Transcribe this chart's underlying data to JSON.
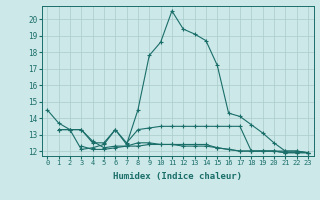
{
  "xlabel": "Humidex (Indice chaleur)",
  "bg_color": "#cce8e8",
  "grid_color": "#aacccc",
  "line_color": "#1a6e6a",
  "xlim": [
    -0.5,
    23.5
  ],
  "ylim": [
    11.7,
    20.8
  ],
  "xticks": [
    0,
    1,
    2,
    3,
    4,
    5,
    6,
    7,
    8,
    9,
    10,
    11,
    12,
    13,
    14,
    15,
    16,
    17,
    18,
    19,
    20,
    21,
    22,
    23
  ],
  "yticks": [
    12,
    13,
    14,
    15,
    16,
    17,
    18,
    19,
    20
  ],
  "curve1_x": [
    0,
    1,
    2,
    3,
    4,
    5,
    6,
    7,
    8,
    9,
    10,
    11,
    12,
    13,
    14,
    15,
    16,
    17,
    18,
    19,
    20,
    21,
    22,
    23
  ],
  "curve1_y": [
    14.5,
    13.7,
    13.3,
    12.1,
    12.2,
    12.4,
    13.3,
    12.4,
    14.5,
    17.8,
    18.6,
    20.5,
    19.4,
    19.1,
    18.7,
    17.2,
    14.3,
    14.1,
    13.6,
    13.1,
    12.5,
    12.0,
    12.0,
    11.9
  ],
  "curve2_x": [
    1,
    2,
    3,
    4,
    5,
    6,
    7,
    8,
    9,
    10,
    11,
    12,
    13,
    14,
    15,
    16,
    17,
    18,
    19,
    20,
    21,
    22,
    23
  ],
  "curve2_y": [
    13.3,
    13.3,
    13.3,
    12.5,
    12.5,
    13.3,
    12.5,
    13.3,
    13.4,
    13.5,
    13.5,
    13.5,
    13.5,
    13.5,
    13.5,
    13.5,
    13.5,
    12.0,
    12.0,
    12.0,
    12.0,
    12.0,
    11.9
  ],
  "curve3_x": [
    1,
    2,
    3,
    4,
    5,
    6,
    7,
    8,
    9,
    10,
    11,
    12,
    13,
    14,
    15,
    16,
    17,
    18,
    19,
    20,
    21,
    22,
    23
  ],
  "curve3_y": [
    13.3,
    13.3,
    13.3,
    12.6,
    12.2,
    12.3,
    12.3,
    12.5,
    12.5,
    12.4,
    12.4,
    12.4,
    12.4,
    12.4,
    12.2,
    12.1,
    12.0,
    12.0,
    12.0,
    12.0,
    11.9,
    11.9,
    11.9
  ],
  "curve4_x": [
    3,
    4,
    5,
    6,
    7,
    8,
    9,
    10,
    11,
    12,
    13,
    14,
    15,
    16,
    17,
    18,
    19,
    20,
    21,
    22,
    23
  ],
  "curve4_y": [
    12.3,
    12.1,
    12.1,
    12.2,
    12.3,
    12.3,
    12.4,
    12.4,
    12.4,
    12.3,
    12.3,
    12.3,
    12.2,
    12.1,
    12.0,
    12.0,
    12.0,
    12.0,
    11.9,
    11.9,
    11.9
  ]
}
